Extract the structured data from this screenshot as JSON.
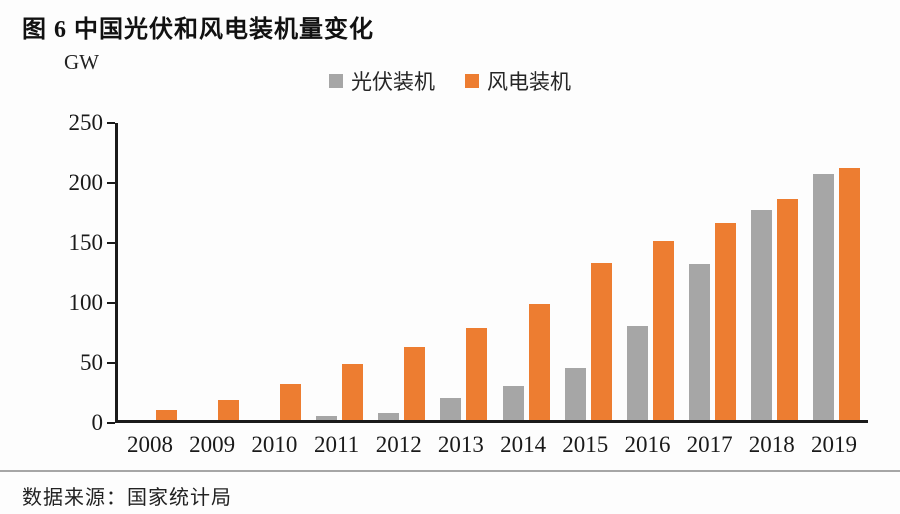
{
  "figure": {
    "title": "图 6 中国光伏和风电装机量变化",
    "unit_label": "GW",
    "source": "数据来源：国家统计局"
  },
  "colors": {
    "background": "#fdfdfd",
    "axis": "#1a1a1a",
    "divider": "#a6a6a6",
    "pv": "#a6a6a6",
    "wind": "#ed7d31"
  },
  "chart_data": {
    "type": "bar",
    "title": "图 6 中国光伏和风电装机量变化",
    "xlabel": "",
    "ylabel": "GW",
    "ylim": [
      0,
      250
    ],
    "yticks": [
      0,
      50,
      100,
      150,
      200,
      250
    ],
    "grid": false,
    "legend_position": "top-center",
    "categories": [
      "2008",
      "2009",
      "2010",
      "2011",
      "2012",
      "2013",
      "2014",
      "2015",
      "2016",
      "2017",
      "2018",
      "2019"
    ],
    "series": [
      {
        "name": "光伏装机",
        "color": "#a6a6a6",
        "values": [
          0,
          0,
          0,
          3,
          6,
          18,
          28,
          43,
          78,
          130,
          175,
          205
        ]
      },
      {
        "name": "风电装机",
        "color": "#ed7d31",
        "values": [
          8,
          17,
          30,
          47,
          61,
          77,
          97,
          131,
          149,
          164,
          184,
          210
        ]
      }
    ]
  }
}
